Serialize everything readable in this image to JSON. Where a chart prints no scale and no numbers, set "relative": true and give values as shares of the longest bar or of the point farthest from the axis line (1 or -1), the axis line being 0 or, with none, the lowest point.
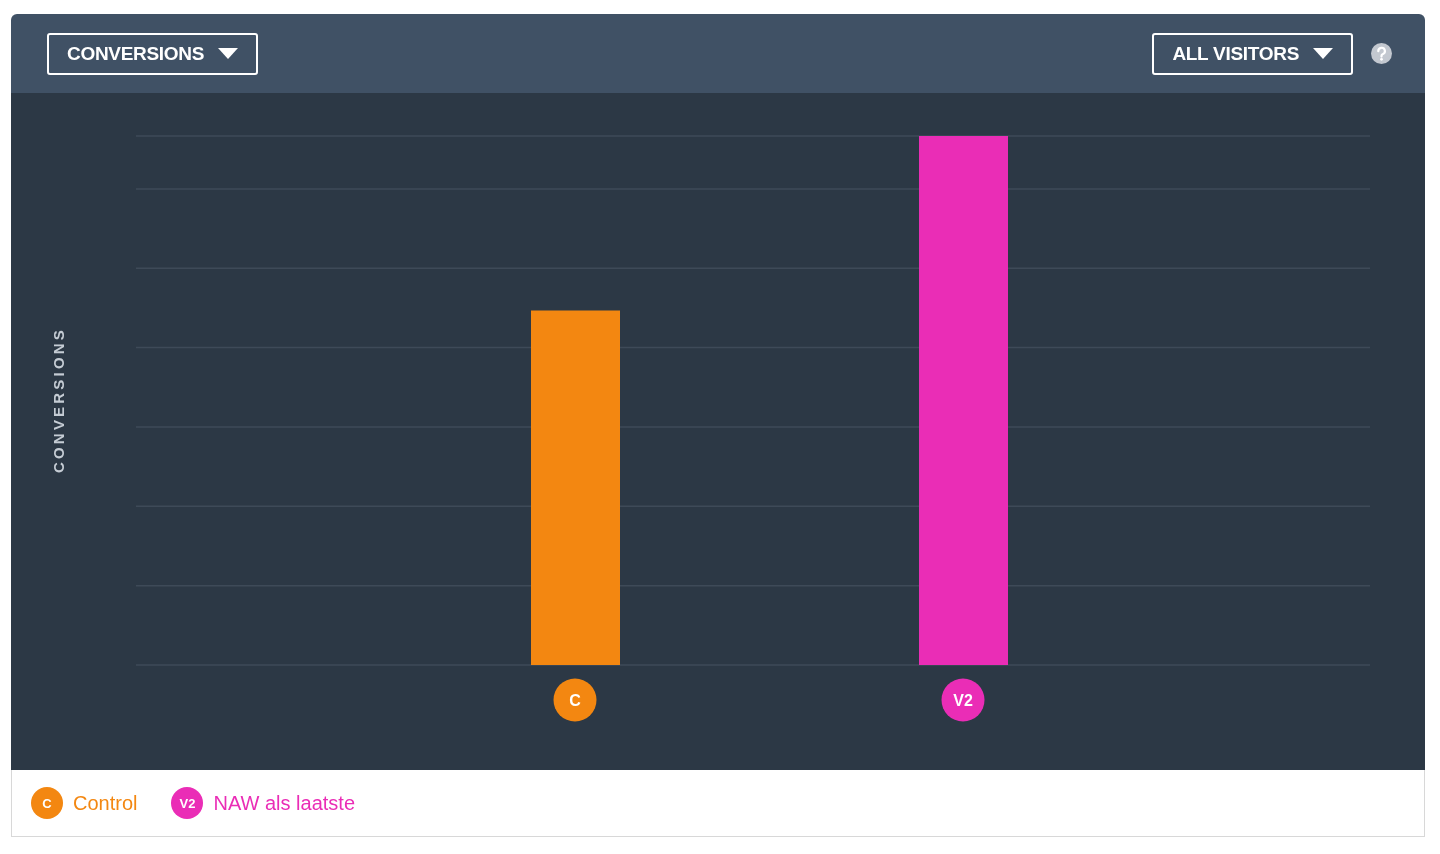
{
  "chart_data": {
    "type": "bar",
    "title": "CONVERSIONS",
    "subtitle": "ALL VISITORS",
    "ylabel": "CONVERSIONS",
    "categories": [
      "C",
      "V2"
    ],
    "series": [
      {
        "name": "Control",
        "color": "#f38711",
        "values": [
          0.67,
          null
        ]
      },
      {
        "name": "NAW als laatste",
        "color": "#ea2db6",
        "values": [
          null,
          1
        ]
      }
    ],
    "relative": true,
    "grid": "y",
    "legend": "bottom"
  }
}
